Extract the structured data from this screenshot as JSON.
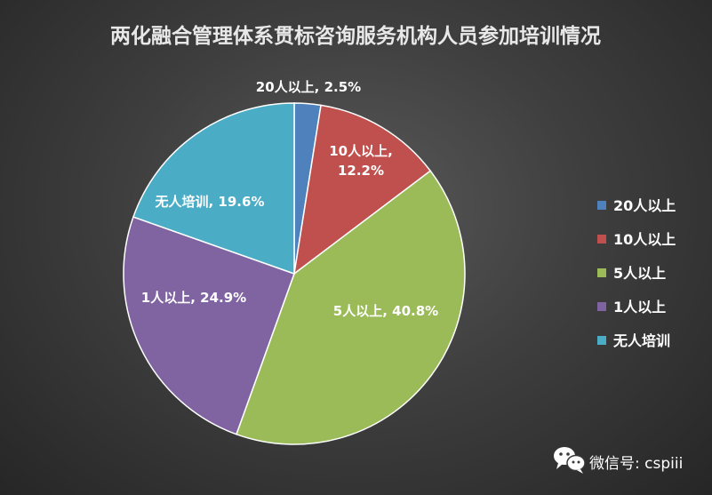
{
  "chart_data": {
    "type": "pie",
    "title": "两化融合管理体系贯标咨询服务机构人员参加培训情况",
    "categories": [
      "20人以上",
      "10人以上",
      "5人以上",
      "1人以上",
      "无人培训"
    ],
    "values": [
      2.5,
      12.2,
      40.8,
      24.9,
      19.6
    ],
    "unit": "%",
    "colors": [
      "#4f81bd",
      "#c0504d",
      "#9bbb59",
      "#8064a2",
      "#4bacc6"
    ],
    "data_labels": [
      [
        "20人以上, 2.5%"
      ],
      [
        "10人以上,",
        "12.2%"
      ],
      [
        "5人以上, 40.8%"
      ],
      [
        "1人以上, 24.9%"
      ],
      [
        "无人培训, 19.6%"
      ]
    ],
    "legend": {
      "position": "right",
      "entries": [
        "20人以上",
        "10人以上",
        "5人以上",
        "1人以上",
        "无人培训"
      ]
    }
  },
  "watermark": {
    "text": "微信号: cspiii",
    "icon": "wechat-icon"
  }
}
